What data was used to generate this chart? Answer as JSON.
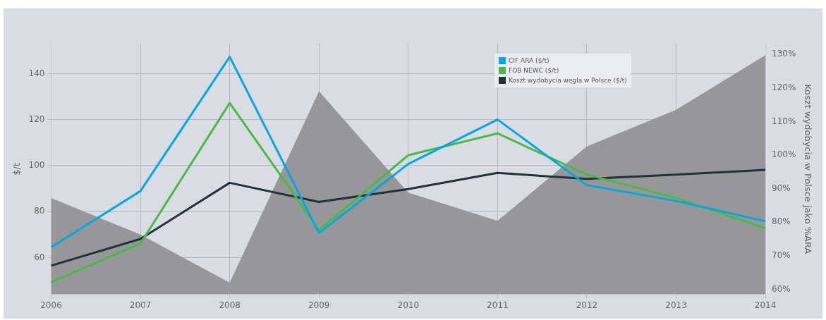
{
  "chart_data": {
    "type": "line",
    "categories": [
      "2006",
      "2007",
      "2008",
      "2009",
      "2010",
      "2011",
      "2012",
      "2013",
      "2014"
    ],
    "ylabel": "$/t",
    "y2label": "Koszt wydobycia w Polsce jako %ARA",
    "series": [
      {
        "type": "area",
        "axis": "y2",
        "color": "#97979a",
        "values": [
          87.2,
          76.3,
          62,
          119,
          88.8,
          80.4,
          102.6,
          113.5,
          129.8
        ]
      },
      {
        "name": "CIF ARA ($/t)",
        "color": "#00a6e0",
        "values": [
          64.5,
          88.9,
          147.3,
          70.7,
          100.7,
          120,
          91.5,
          84.6,
          75.8
        ]
      },
      {
        "name": "FOB NEWC ($/t)",
        "color": "#4cb848",
        "values": [
          49.3,
          66.1,
          127.2,
          72,
          104.5,
          114,
          96.1,
          85.9,
          72.7
        ]
      },
      {
        "name": "Koszt wydobycia węgla w Polsce ($/t)",
        "color": "#22313a",
        "values": [
          56.5,
          68.1,
          92.5,
          84.2,
          89.8,
          96.8,
          94.2,
          96.1,
          98.1
        ]
      }
    ],
    "ylim": [
      44,
      153
    ],
    "yticks": [
      60,
      80,
      100,
      120,
      140
    ],
    "y2lim": [
      58.5,
      133.2
    ],
    "y2ticks": [
      {
        "value": 60,
        "label": "60%"
      },
      {
        "value": 70,
        "label": "70%"
      },
      {
        "value": 80,
        "label": "80%"
      },
      {
        "value": 90,
        "label": "90%"
      },
      {
        "value": 100,
        "label": "100%"
      },
      {
        "value": 110,
        "label": "110%"
      },
      {
        "value": 120,
        "label": "120%"
      },
      {
        "value": 130,
        "label": "130%"
      }
    ],
    "grid": true,
    "legend": "top right",
    "marker": "none",
    "line_style": "solid"
  }
}
